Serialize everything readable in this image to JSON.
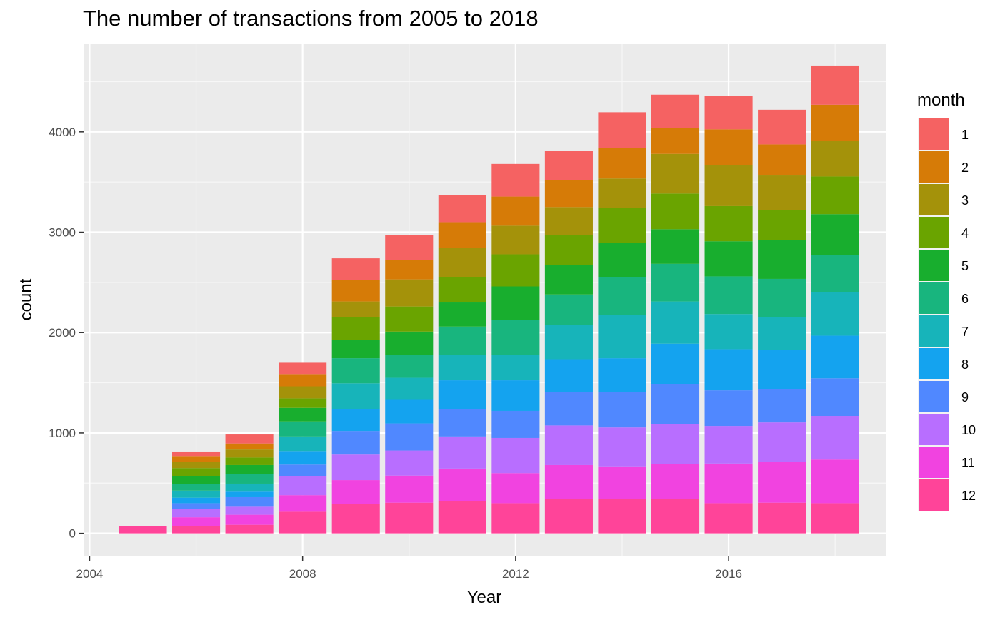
{
  "chart_data": {
    "type": "bar",
    "stacked": true,
    "title": "The number of transactions from 2005 to 2018",
    "xlabel": "Year",
    "ylabel": "count",
    "xlim": [
      2003.9,
      2018.95
    ],
    "ylim": [
      -230,
      4880
    ],
    "x_ticks": [
      2004,
      2008,
      2012,
      2016
    ],
    "y_ticks": [
      0,
      1000,
      2000,
      3000,
      4000
    ],
    "grid": true,
    "legend_position": "right",
    "legend_title": "month",
    "categories": [
      2005,
      2006,
      2007,
      2008,
      2009,
      2010,
      2011,
      2012,
      2013,
      2014,
      2015,
      2016,
      2017,
      2018
    ],
    "series": [
      {
        "name": "12",
        "color": "#FF4499",
        "values": [
          70,
          75,
          85,
          215,
          290,
          305,
          320,
          300,
          340,
          340,
          345,
          300,
          305,
          300
        ]
      },
      {
        "name": "11",
        "color": "#F143E0",
        "values": [
          0,
          85,
          100,
          165,
          240,
          270,
          325,
          300,
          340,
          320,
          345,
          395,
          405,
          435
        ]
      },
      {
        "name": "10",
        "color": "#B86EFF",
        "values": [
          0,
          80,
          80,
          190,
          255,
          250,
          320,
          350,
          395,
          395,
          400,
          375,
          395,
          435
        ]
      },
      {
        "name": "9",
        "color": "#5088FF",
        "values": [
          0,
          60,
          95,
          115,
          235,
          270,
          270,
          270,
          335,
          350,
          395,
          355,
          335,
          375
        ]
      },
      {
        "name": "8",
        "color": "#14A3EF",
        "values": [
          0,
          55,
          55,
          135,
          220,
          235,
          290,
          305,
          325,
          340,
          405,
          410,
          385,
          425
        ]
      },
      {
        "name": "7",
        "color": "#17B4BA",
        "values": [
          0,
          70,
          80,
          145,
          255,
          220,
          250,
          255,
          340,
          430,
          420,
          350,
          330,
          430
        ]
      },
      {
        "name": "6",
        "color": "#18B57E",
        "values": [
          0,
          65,
          95,
          150,
          250,
          230,
          285,
          345,
          305,
          375,
          375,
          375,
          380,
          370
        ]
      },
      {
        "name": "5",
        "color": "#18AE2E",
        "values": [
          0,
          80,
          90,
          135,
          180,
          230,
          240,
          335,
          290,
          340,
          345,
          350,
          385,
          410
        ]
      },
      {
        "name": "4",
        "color": "#6AA400",
        "values": [
          0,
          80,
          75,
          95,
          230,
          250,
          255,
          320,
          305,
          350,
          355,
          350,
          300,
          375
        ]
      },
      {
        "name": "3",
        "color": "#A4920A",
        "values": [
          0,
          65,
          80,
          120,
          155,
          270,
          290,
          285,
          275,
          295,
          395,
          410,
          345,
          355
        ]
      },
      {
        "name": "2",
        "color": "#D67B07",
        "values": [
          0,
          55,
          60,
          115,
          215,
          190,
          255,
          290,
          270,
          305,
          260,
          355,
          310,
          360
        ]
      },
      {
        "name": "1",
        "color": "#F56262",
        "values": [
          0,
          45,
          90,
          120,
          215,
          250,
          270,
          325,
          290,
          355,
          330,
          335,
          345,
          390
        ]
      }
    ]
  }
}
